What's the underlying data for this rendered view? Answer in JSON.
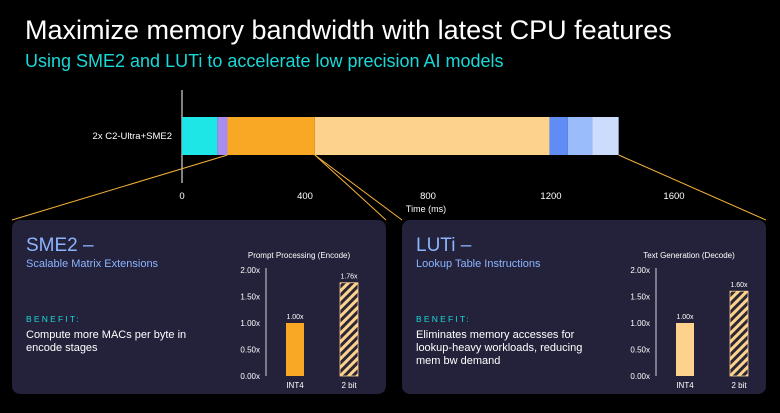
{
  "header": {
    "title": "Maximize memory bandwidth with latest CPU features",
    "subtitle": "Using SME2 and LUTi to accelerate low precision AI models"
  },
  "chart_data": [
    {
      "type": "bar",
      "orientation": "horizontal-stacked",
      "categories": [
        "2x C2-Ultra+SME2"
      ],
      "xlabel": "Time (ms)",
      "xticks": [
        0,
        400,
        800,
        1200,
        1600
      ],
      "xlim": [
        0,
        1950
      ],
      "segments": [
        {
          "start": 0,
          "end": 115,
          "color": "#1ee6e6"
        },
        {
          "start": 115,
          "end": 148,
          "color": "#a98cf0"
        },
        {
          "start": 148,
          "end": 432,
          "color": "#f9a825"
        },
        {
          "start": 432,
          "end": 1195,
          "color": "#fdd28c"
        },
        {
          "start": 1195,
          "end": 1255,
          "color": "#5f8df5"
        },
        {
          "start": 1255,
          "end": 1335,
          "color": "#9bbcfa"
        },
        {
          "start": 1335,
          "end": 1420,
          "color": "#cbdcfd"
        }
      ]
    },
    {
      "type": "bar",
      "title": "Prompt Processing (Encode)",
      "categories": [
        "INT4",
        "2 bit"
      ],
      "values": [
        1.0,
        1.76
      ],
      "value_labels": [
        "1.00x",
        "1.76x"
      ],
      "yticks": [
        "0.00x",
        "0.50x",
        "1.00x",
        "1.50x",
        "2.00x"
      ],
      "ylim": [
        0,
        2
      ],
      "colors": [
        "#f9a825",
        "#fdd28c"
      ],
      "hatched": [
        false,
        true
      ]
    },
    {
      "type": "bar",
      "title": "Text Generation (Decode)",
      "categories": [
        "INT4",
        "2 bit"
      ],
      "values": [
        1.0,
        1.6
      ],
      "value_labels": [
        "1.00x",
        "1.60x"
      ],
      "yticks": [
        "0.00x",
        "0.50x",
        "1.00x",
        "1.50x",
        "2.00x"
      ],
      "ylim": [
        0,
        2
      ],
      "colors": [
        "#fdd28c",
        "#fdd28c"
      ],
      "hatched": [
        false,
        true
      ]
    }
  ],
  "cards": {
    "left": {
      "heading": "SME2 –",
      "sub": "Scalable Matrix Extensions",
      "benefit_label": "BENEFIT:",
      "benefit_text": "Compute more MACs per byte in encode stages"
    },
    "right": {
      "heading": "LUTi –",
      "sub": "Lookup Table Instructions",
      "benefit_label": "BENEFIT:",
      "benefit_text": "Eliminates memory accesses for lookup-heavy workloads, reducing mem bw demand"
    }
  },
  "colors": {
    "accent_cyan": "#19d8d8",
    "card_bg": "#23223a",
    "card_heading": "#8cb4ff",
    "connector": "#f5b23a"
  }
}
